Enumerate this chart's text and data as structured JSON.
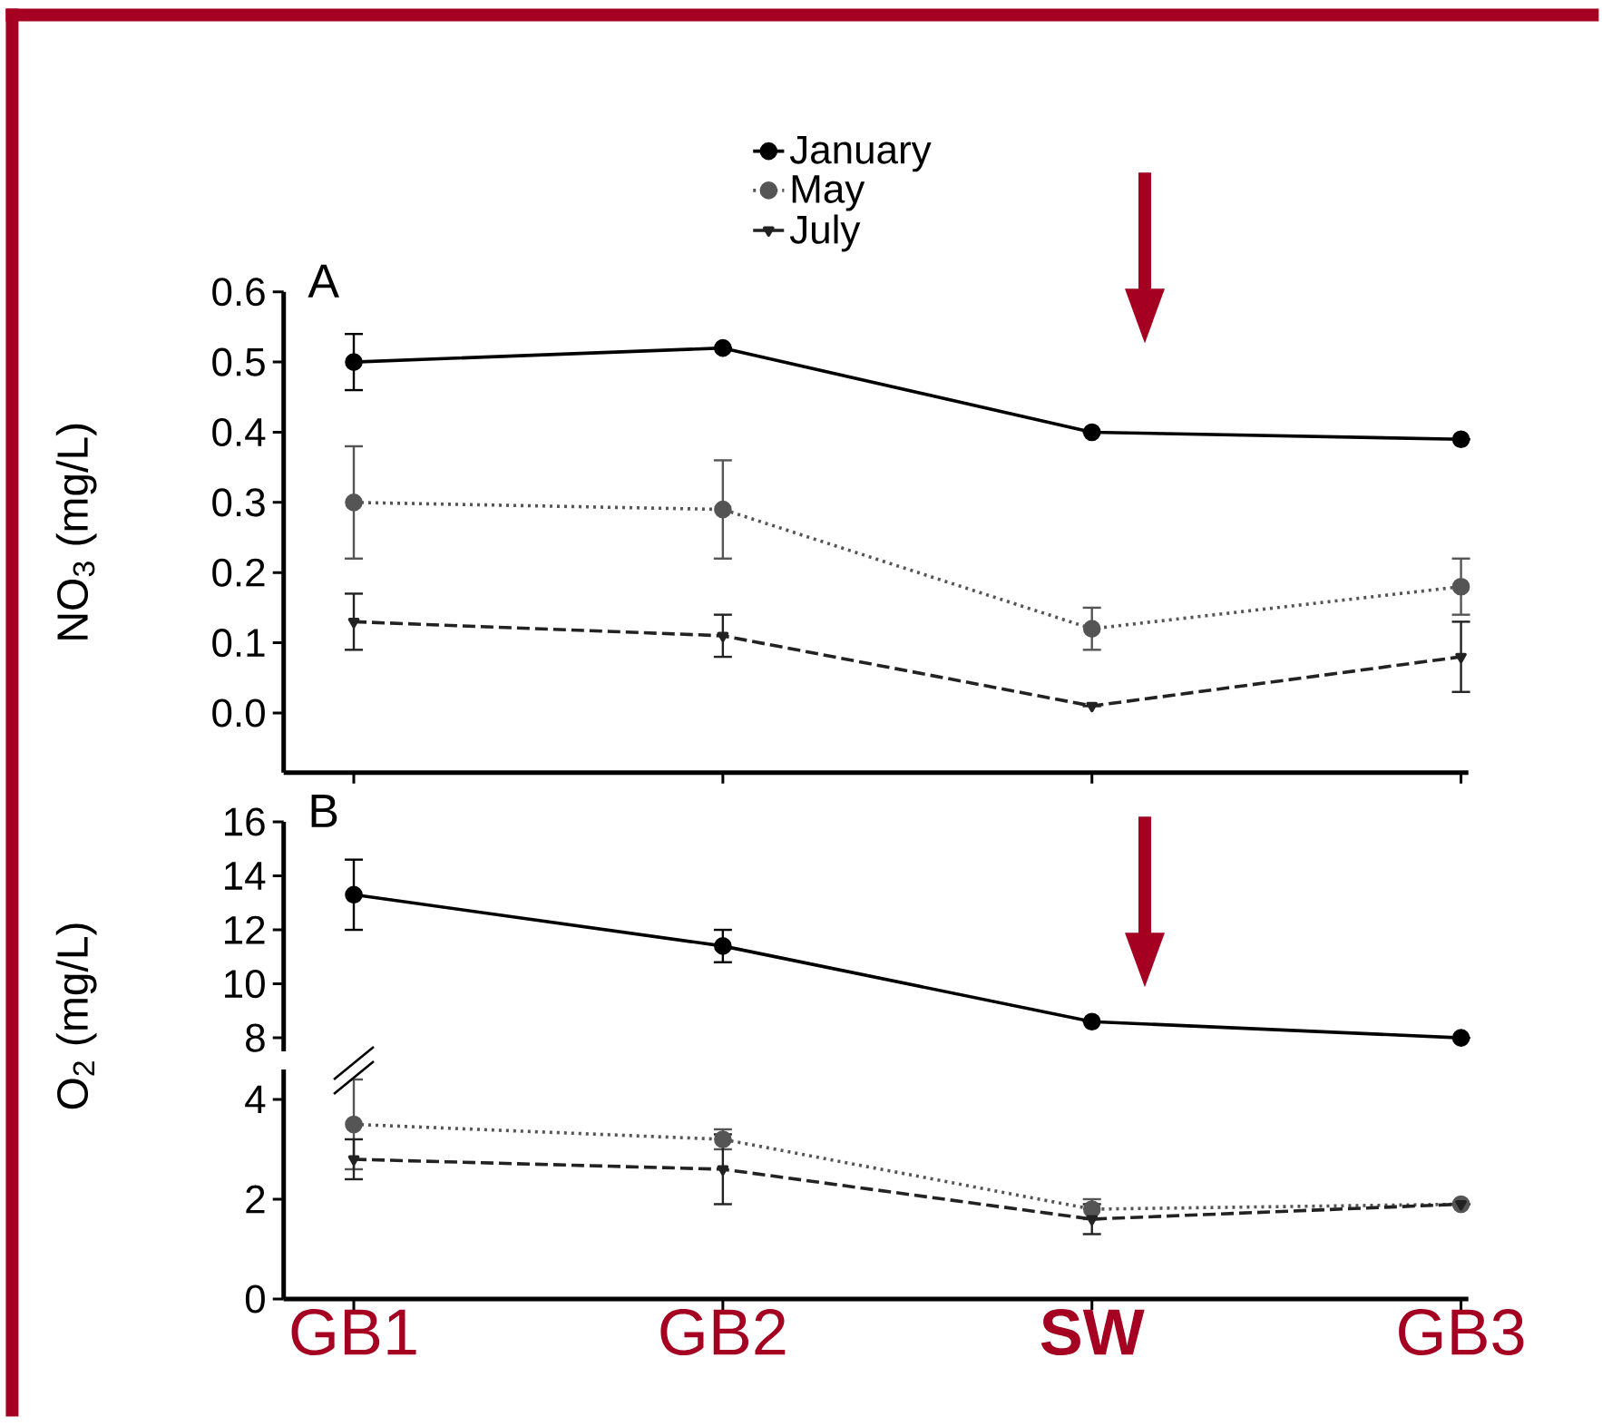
{
  "chart_data": [
    {
      "type": "line",
      "title": "A",
      "ylabel": "NO$_{3}$ (mg/L)",
      "categories": [
        null,
        null,
        null,
        null
      ],
      "ylim": [
        -0.085,
        0.6
      ],
      "yticks": [
        {
          "value": 0,
          "label": "0.0"
        },
        0.1,
        0.2,
        0.3,
        0.4,
        0.5,
        0.6
      ],
      "tick_labels": "y",
      "legend": "top",
      "series": [
        {
          "name": "January",
          "color": "#000000",
          "marker": "circle",
          "line_style": "solid",
          "values": [
            0.5,
            0.52,
            0.4,
            0.39
          ],
          "errors": [
            0.04,
            null,
            null,
            null
          ]
        },
        {
          "name": "May",
          "color": "#555555",
          "marker": "circle",
          "line_style": "dotted",
          "values": [
            0.3,
            0.29,
            0.12,
            0.18
          ],
          "errors": [
            0.08,
            0.07,
            0.03,
            0.04
          ]
        },
        {
          "name": "July",
          "color": "#222222",
          "marker": "triangle",
          "line_style": "dashed",
          "values": [
            0.13,
            0.11,
            0.01,
            0.08
          ],
          "errors": [
            0.04,
            0.03,
            null,
            0.05
          ]
        }
      ]
    },
    {
      "type": "line",
      "title": "B",
      "ylabel": "O$_{2}$ (mg/L)",
      "categories": [
        null,
        null,
        null,
        null
      ],
      "ylim": [
        7.5,
        16
      ],
      "yticks": [
        8,
        10,
        12,
        14,
        16
      ],
      "tick_labels": "y",
      "series": [
        {
          "color": "#000000",
          "marker": "circle",
          "line_style": "solid",
          "values": [
            13.3,
            11.4,
            8.6,
            8.0
          ],
          "errors": [
            1.3,
            0.6,
            null,
            null
          ]
        }
      ]
    },
    {
      "type": "line",
      "categories": [
        "GB1",
        "GB2",
        "**SW**",
        "GB3"
      ],
      "ylim": [
        0,
        4.6
      ],
      "yticks": [
        0,
        2,
        4
      ],
      "series": [
        {
          "color": "#555555",
          "marker": "circle",
          "line_style": "dotted",
          "values": [
            3.5,
            3.2,
            1.8,
            1.9
          ],
          "errors": [
            0.9,
            0.2,
            0.2,
            null
          ]
        },
        {
          "color": "#222222",
          "marker": "triangle",
          "line_style": "dashed",
          "values": [
            2.8,
            2.6,
            1.6,
            1.9
          ],
          "errors": [
            0.4,
            0.7,
            0.3,
            null
          ]
        }
      ]
    }
  ]
}
